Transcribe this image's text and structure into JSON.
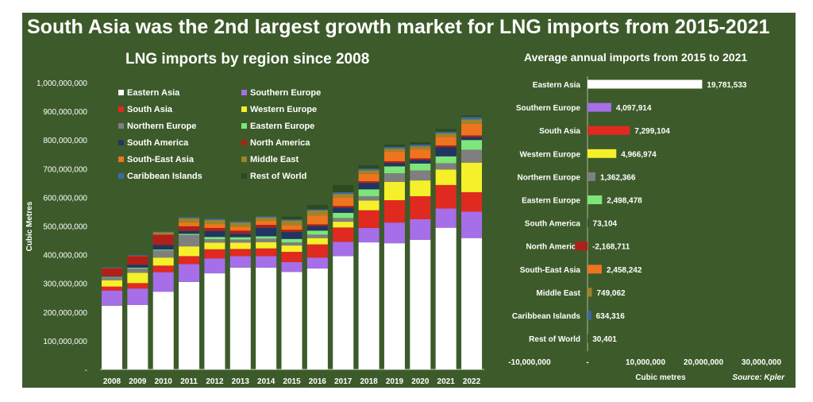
{
  "header": {
    "title": "South Asia was the 2nd largest growth market for LNG imports from 2015-2021",
    "source": "Source: Kpler"
  },
  "colors": {
    "background": "#3d5b2a",
    "text": "#ffffff"
  },
  "chart_data": [
    {
      "type": "bar",
      "stacked": true,
      "title": "LNG imports by region since 2008",
      "ylabel": "Cubic Metres",
      "xlabel": "",
      "ylim": [
        0,
        1000000000
      ],
      "y_ticks": [
        "-",
        "100,000,000",
        "200,000,000",
        "300,000,000",
        "400,000,000",
        "500,000,000",
        "600,000,000",
        "700,000,000",
        "800,000,000",
        "900,000,000",
        "1,000,000,000"
      ],
      "legend_position": "top-left",
      "categories": [
        "2008",
        "2009",
        "2010",
        "2011",
        "2012",
        "2013",
        "2014",
        "2015",
        "2016",
        "2017",
        "2018",
        "2019",
        "2020",
        "2021",
        "2022"
      ],
      "series": [
        {
          "name": "Eastern Asia",
          "color": "#ffffff",
          "values": [
            222000000,
            225000000,
            271000000,
            305000000,
            335000000,
            355000000,
            355000000,
            340000000,
            352000000,
            395000000,
            443000000,
            440000000,
            452000000,
            494000000,
            458000000
          ]
        },
        {
          "name": "Southern Europe",
          "color": "#a66ee8",
          "values": [
            53000000,
            57000000,
            68000000,
            62000000,
            52000000,
            40000000,
            40000000,
            34000000,
            38000000,
            50000000,
            50000000,
            72000000,
            72000000,
            67000000,
            92000000
          ]
        },
        {
          "name": "South Asia",
          "color": "#e02a1f",
          "values": [
            14000000,
            19000000,
            23000000,
            28000000,
            32000000,
            25000000,
            27000000,
            36000000,
            46000000,
            50000000,
            62000000,
            78000000,
            80000000,
            82000000,
            68000000
          ]
        },
        {
          "name": "Western Europe",
          "color": "#f5f02a",
          "values": [
            22000000,
            36000000,
            28000000,
            34000000,
            23000000,
            22000000,
            22000000,
            22000000,
            22000000,
            20000000,
            34000000,
            64000000,
            55000000,
            54000000,
            103000000
          ]
        },
        {
          "name": "Northern Europe",
          "color": "#7f7f7f",
          "values": [
            10000000,
            15000000,
            25000000,
            40000000,
            12000000,
            11000000,
            12000000,
            11000000,
            12000000,
            13000000,
            15000000,
            30000000,
            35000000,
            22000000,
            45000000
          ]
        },
        {
          "name": "Eastern Europe",
          "color": "#7de57a",
          "values": [
            2000000,
            3000000,
            3000000,
            4000000,
            8000000,
            8000000,
            8000000,
            12000000,
            14000000,
            18000000,
            24000000,
            24000000,
            24000000,
            24000000,
            34000000
          ]
        },
        {
          "name": "South America",
          "color": "#1f3664",
          "values": [
            2000000,
            10000000,
            16000000,
            10000000,
            20000000,
            12000000,
            30000000,
            24000000,
            16000000,
            18000000,
            22000000,
            12000000,
            12000000,
            32000000,
            10000000
          ]
        },
        {
          "name": "North America",
          "color": "#b0201a",
          "values": [
            28000000,
            30000000,
            36000000,
            16000000,
            11000000,
            11000000,
            10000000,
            8000000,
            6000000,
            6000000,
            6000000,
            6000000,
            6000000,
            6000000,
            6000000
          ]
        },
        {
          "name": "South-East Asia",
          "color": "#ee7420",
          "values": [
            1000000,
            1000000,
            2000000,
            14000000,
            14000000,
            14000000,
            14000000,
            16000000,
            30000000,
            30000000,
            26000000,
            34000000,
            32000000,
            30000000,
            40000000
          ]
        },
        {
          "name": "Middle East",
          "color": "#a08328",
          "values": [
            0,
            0,
            6000000,
            14000000,
            14000000,
            14000000,
            12000000,
            16000000,
            18000000,
            12000000,
            12000000,
            10000000,
            10000000,
            12000000,
            16000000
          ]
        },
        {
          "name": "Caribbean Islands",
          "color": "#3a6aa8",
          "values": [
            2000000,
            2000000,
            2000000,
            4000000,
            4000000,
            4000000,
            4000000,
            4000000,
            4000000,
            6000000,
            6000000,
            6000000,
            6000000,
            6000000,
            8000000
          ]
        },
        {
          "name": "Rest of World",
          "color": "#2c4a22",
          "values": [
            0,
            0,
            0,
            0,
            0,
            0,
            0,
            10000000,
            15000000,
            25000000,
            12000000,
            8000000,
            8000000,
            10000000,
            5000000
          ]
        }
      ]
    },
    {
      "type": "bar",
      "orientation": "horizontal",
      "title": "Average annual imports from 2015 to 2021",
      "xlabel": "Cubic metres",
      "xlim": [
        -10000000,
        30000000
      ],
      "x_ticks": [
        "-10,000,000",
        "-",
        "10,000,000",
        "20,000,000",
        "30,000,000"
      ],
      "categories": [
        "Eastern Asia",
        "Southern Europe",
        "South Asia",
        "Western Europe",
        "Northern Europe",
        "Eastern Europe",
        "South America",
        "North America",
        "South-East Asia",
        "Middle East",
        "Caribbean Islands",
        "Rest of World"
      ],
      "values": [
        19781533,
        4097914,
        7299104,
        4966974,
        1362366,
        2498478,
        73104,
        -2168711,
        2458242,
        749062,
        634316,
        30401
      ],
      "data_labels": [
        "19,781,533",
        "4,097,914",
        "7,299,104",
        "4,966,974",
        "1,362,366",
        "2,498,478",
        "73,104",
        "-2,168,711",
        "2,458,242",
        "749,062",
        "634,316",
        "30,401"
      ],
      "colors": [
        "#ffffff",
        "#a66ee8",
        "#e02a1f",
        "#f5f02a",
        "#7f7f7f",
        "#7de57a",
        "#1f3664",
        "#b0201a",
        "#ee7420",
        "#a08328",
        "#3a6aa8",
        "#2c4a22"
      ]
    }
  ]
}
